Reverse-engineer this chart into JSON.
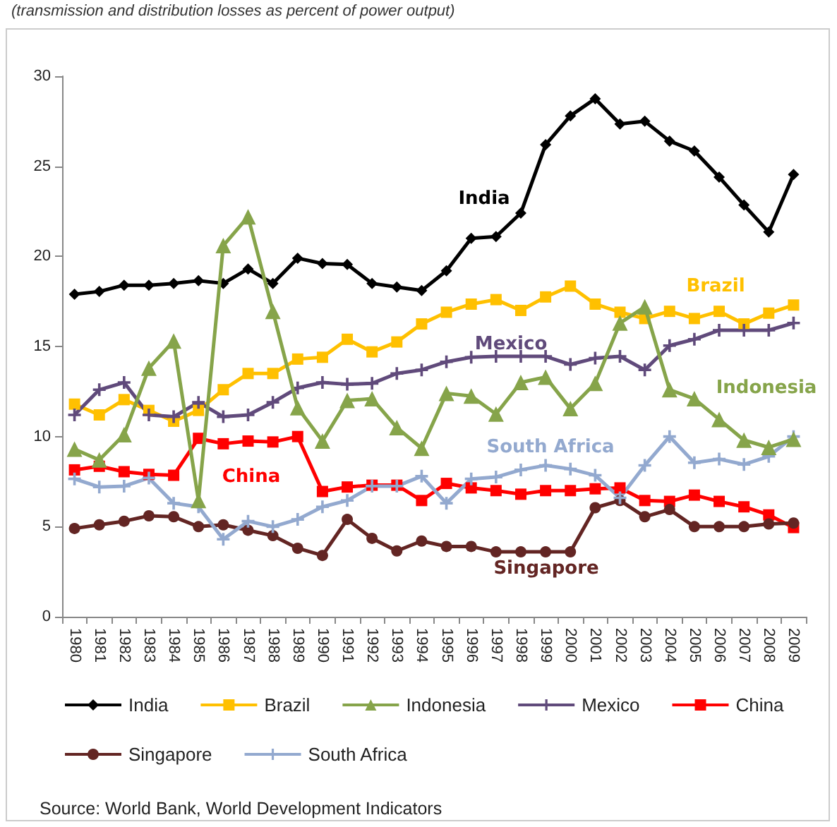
{
  "chart_data": {
    "type": "line",
    "title": "(transmission and distribution losses as percent of power output)",
    "categories": [
      "1980",
      "1981",
      "1982",
      "1983",
      "1984",
      "1985",
      "1986",
      "1987",
      "1988",
      "1989",
      "1990",
      "1991",
      "1992",
      "1993",
      "1994",
      "1995",
      "1996",
      "1997",
      "1998",
      "1999",
      "2000",
      "2001",
      "2002",
      "2003",
      "2004",
      "2005",
      "2006",
      "2007",
      "2008",
      "2009"
    ],
    "series": [
      {
        "name": "India",
        "color": "#000000",
        "marker": "diamond",
        "values": [
          17.9,
          18.05,
          18.4,
          18.4,
          18.5,
          18.65,
          18.5,
          19.3,
          18.5,
          19.9,
          19.6,
          19.55,
          18.5,
          18.3,
          18.1,
          19.2,
          21.0,
          21.1,
          22.4,
          26.2,
          27.8,
          28.75,
          27.35,
          27.5,
          26.4,
          25.85,
          24.4,
          22.85,
          21.35,
          24.55
        ]
      },
      {
        "name": "Brazil",
        "color": "#ffc000",
        "marker": "square",
        "values": [
          11.8,
          11.2,
          12.05,
          11.45,
          10.85,
          11.45,
          12.6,
          13.5,
          13.5,
          14.3,
          14.4,
          15.4,
          14.7,
          15.25,
          16.25,
          16.9,
          17.35,
          17.6,
          17.0,
          17.75,
          18.35,
          17.35,
          16.9,
          16.55,
          16.95,
          16.55,
          16.95,
          16.25,
          16.85,
          17.3
        ]
      },
      {
        "name": "Indonesia",
        "color": "#86a44a",
        "marker": "triangle",
        "values": [
          9.3,
          8.7,
          10.1,
          13.8,
          15.3,
          6.45,
          20.6,
          22.2,
          16.95,
          11.6,
          9.75,
          12.0,
          12.1,
          10.5,
          9.35,
          12.4,
          12.25,
          11.25,
          13.0,
          13.3,
          11.55,
          12.95,
          16.3,
          17.2,
          12.6,
          12.1,
          10.95,
          9.8,
          9.4,
          9.85
        ]
      },
      {
        "name": "Mexico",
        "color": "#604a7b",
        "marker": "cross",
        "values": [
          11.2,
          12.6,
          13.0,
          11.2,
          11.1,
          11.9,
          11.1,
          11.2,
          11.9,
          12.7,
          13.0,
          12.9,
          12.95,
          13.5,
          13.7,
          14.15,
          14.4,
          14.45,
          14.45,
          14.45,
          14.0,
          14.35,
          14.45,
          13.7,
          15.05,
          15.4,
          15.9,
          15.9,
          15.9,
          16.3
        ]
      },
      {
        "name": "China",
        "color": "#ff0000",
        "marker": "square",
        "values": [
          8.15,
          8.35,
          8.05,
          7.9,
          7.85,
          9.9,
          9.6,
          9.75,
          9.7,
          10.0,
          6.95,
          7.2,
          7.3,
          7.3,
          6.45,
          7.4,
          7.15,
          7.0,
          6.8,
          7.0,
          7.0,
          7.1,
          7.15,
          6.45,
          6.4,
          6.75,
          6.4,
          6.1,
          5.65,
          4.95
        ]
      },
      {
        "name": "Singapore",
        "color": "#632523",
        "marker": "circle",
        "values": [
          4.9,
          5.1,
          5.3,
          5.6,
          5.55,
          5.0,
          5.1,
          4.8,
          4.5,
          3.8,
          3.4,
          5.4,
          4.35,
          3.65,
          4.2,
          3.9,
          3.9,
          3.6,
          3.6,
          3.6,
          3.6,
          6.05,
          6.45,
          5.55,
          5.95,
          5.0,
          5.0,
          5.0,
          5.15,
          5.2
        ]
      },
      {
        "name": "South Africa",
        "color": "#93a9cf",
        "marker": "cross",
        "values": [
          7.65,
          7.2,
          7.25,
          7.7,
          6.3,
          6.1,
          4.3,
          5.3,
          5.0,
          5.4,
          6.1,
          6.45,
          7.25,
          7.25,
          7.8,
          6.3,
          7.65,
          7.75,
          8.15,
          8.4,
          8.2,
          7.85,
          6.6,
          8.4,
          10.0,
          8.55,
          8.75,
          8.45,
          8.9,
          10.0
        ]
      }
    ],
    "ylim": [
      0,
      30
    ],
    "yticks": [
      0,
      5,
      10,
      15,
      20,
      25,
      30
    ],
    "legend": "bottom",
    "line_style": "solid",
    "annotations": [
      "India",
      "Brazil",
      "Mexico",
      "Indonesia",
      "South Africa",
      "China",
      "Singapore",
      "Source: World Bank, World Development Indicators"
    ]
  }
}
